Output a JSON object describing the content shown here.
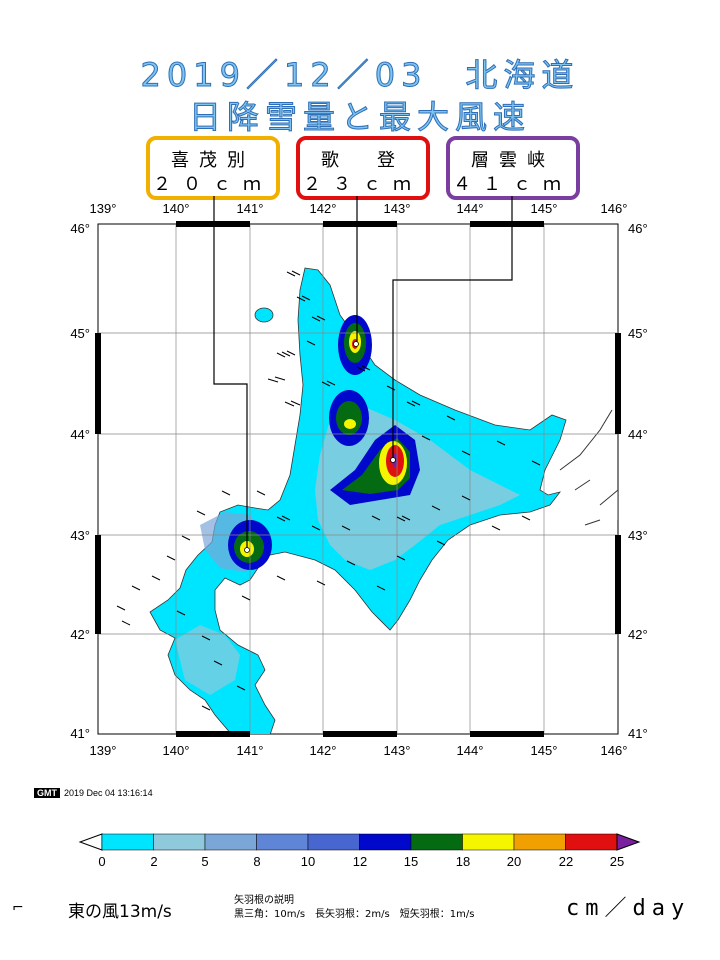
{
  "title": {
    "line1": "2019／12／03　北海道",
    "line2": "日降雪量と最大風速"
  },
  "stations": [
    {
      "name": "喜茂別",
      "value": "２０ｃｍ",
      "color": "#f1b000",
      "lon": 141.0,
      "lat": 42.85
    },
    {
      "name": "歌　登",
      "value": "２３ｃｍ",
      "color": "#e01010",
      "lon": 142.45,
      "lat": 44.9
    },
    {
      "name": "層雲峡",
      "value": "４１ｃｍ",
      "color": "#7a3ea0",
      "lon": 143.0,
      "lat": 43.75
    }
  ],
  "map": {
    "lon_ticks": [
      "139°",
      "140°",
      "141°",
      "142°",
      "143°",
      "144°",
      "145°",
      "146°"
    ],
    "lat_ticks": [
      "46°",
      "45°",
      "44°",
      "43°",
      "42°",
      "41°"
    ],
    "lon_range": [
      139,
      146
    ],
    "lat_range": [
      41,
      46
    ]
  },
  "timestamp": {
    "logo": "GMT",
    "text": "2019 Dec 04 13:16:14"
  },
  "colorbar": {
    "ticks": [
      "0",
      "2",
      "5",
      "8",
      "10",
      "12",
      "15",
      "18",
      "20",
      "22",
      "25"
    ],
    "colors": [
      "#00e5ff",
      "#8ec9dc",
      "#7aa6d8",
      "#5f86d6",
      "#4866d0",
      "#0008cc",
      "#056b12",
      "#f5f500",
      "#f0a000",
      "#e01010"
    ],
    "over_color": "#7a1fa0",
    "under_color": "#ffffff"
  },
  "legend": {
    "arrow_glyph": "⌐",
    "east_wind": "東の風13m/s",
    "help_title": "矢羽根の説明",
    "help_text": "黒三角：10m/s　長矢羽根：2m/s　短矢羽根：1m/s",
    "unit": "cm／day"
  }
}
